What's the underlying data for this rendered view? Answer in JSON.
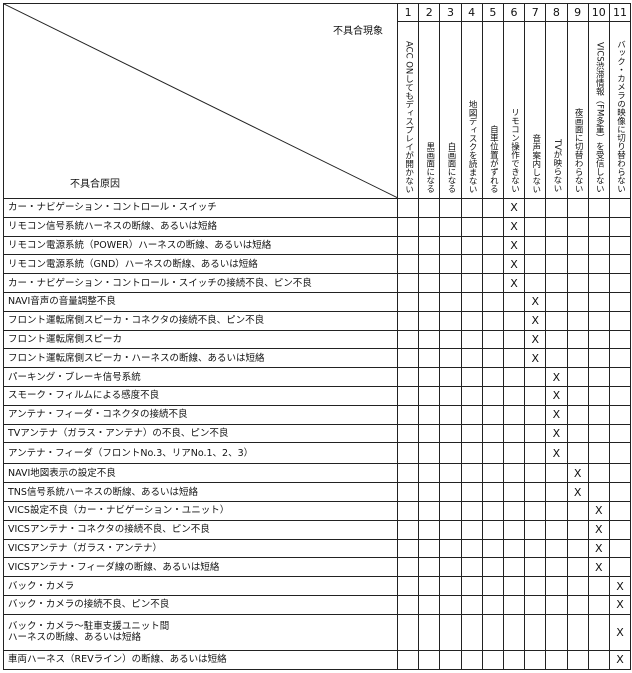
{
  "header": {
    "symptom_title": "不具合現象",
    "cause_title": "不具合原因",
    "columns": [
      {
        "no": "1",
        "label": "ACC ONしてもディスプレイが開かない"
      },
      {
        "no": "2",
        "label": "黒画面になる"
      },
      {
        "no": "3",
        "label": "白画面になる"
      },
      {
        "no": "4",
        "label": "地図ディスクを読まない"
      },
      {
        "no": "5",
        "label": "自車位置がずれる"
      },
      {
        "no": "6",
        "label": "リモコン操作できない"
      },
      {
        "no": "7",
        "label": "音声案内しない"
      },
      {
        "no": "8",
        "label": "TVが映らない"
      },
      {
        "no": "9",
        "label": "夜画面に切替わらない"
      },
      {
        "no": "10",
        "label": "VICS渋滞情報（FM多重）を受信しない"
      },
      {
        "no": "11",
        "label": "バック・カメラの映像に切り替わらない"
      }
    ]
  },
  "mark_symbol": "X",
  "rows": [
    {
      "cause": "カー・ナビゲーション・コントロール・スイッチ",
      "col": 6
    },
    {
      "cause": "リモコン信号系統ハーネスの断線、あるいは短絡",
      "col": 6
    },
    {
      "cause": "リモコン電源系統（POWER）ハーネスの断線、あるいは短絡",
      "col": 6
    },
    {
      "cause": "リモコン電源系統（GND）ハーネスの断線、あるいは短絡",
      "col": 6
    },
    {
      "cause": "カー・ナビゲーション・コントロール・スイッチの接続不良、ピン不良",
      "col": 6
    },
    {
      "cause": "NAVI音声の音量調整不良",
      "col": 7
    },
    {
      "cause": "フロント運転席側スピーカ・コネクタの接続不良、ピン不良",
      "col": 7
    },
    {
      "cause": "フロント運転席側スピーカ",
      "col": 7
    },
    {
      "cause": "フロント運転席側スピーカ・ハーネスの断線、あるいは短絡",
      "col": 7
    },
    {
      "cause": "パーキング・ブレーキ信号系統",
      "col": 8
    },
    {
      "cause": "スモーク・フィルムによる感度不良",
      "col": 8
    },
    {
      "cause": "アンテナ・フィーダ・コネクタの接続不良",
      "col": 8
    },
    {
      "cause": "TVアンテナ（ガラス・アンテナ）の不良、ピン不良",
      "col": 8
    },
    {
      "cause": "アンテナ・フィーダ（フロントNo.3、リアNo.1、2、3）",
      "col": 8,
      "mid": true
    },
    {
      "cause": "NAVI地図表示の設定不良",
      "col": 9
    },
    {
      "cause": "TNS信号系統ハーネスの断線、あるいは短絡",
      "col": 9
    },
    {
      "cause": "VICS設定不良（カー・ナビゲーション・ユニット）",
      "col": 10
    },
    {
      "cause": "VICSアンテナ・コネクタの接続不良、ピン不良",
      "col": 10
    },
    {
      "cause": "VICSアンテナ（ガラス・アンテナ）",
      "col": 10
    },
    {
      "cause": "VICSアンテナ・フィーダ線の断線、あるいは短絡",
      "col": 10
    },
    {
      "cause": "バック・カメラ",
      "col": 11
    },
    {
      "cause": "バック・カメラの接続不良、ピン不良",
      "col": 11
    },
    {
      "cause": "バック・カメラ～駐車支援ユニット間\nハーネスの断線、あるいは短絡",
      "col": 11,
      "tall": true
    },
    {
      "cause": "車両ハーネス（REVライン）の断線、あるいは短絡",
      "col": 11
    }
  ]
}
